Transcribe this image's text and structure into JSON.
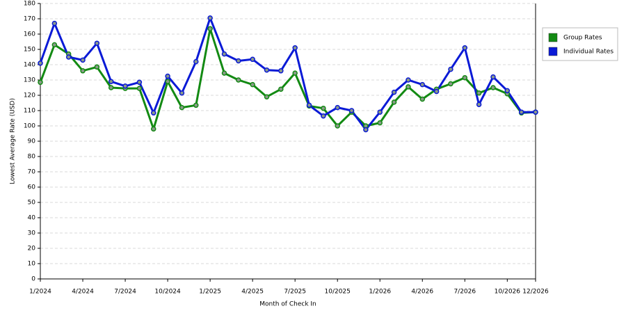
{
  "chart_data": {
    "type": "line",
    "x_label": "Month of Check In",
    "y_label": "Lowest Average Rate (USD)",
    "categories": [
      "1/2024",
      null,
      null,
      "4/2024",
      null,
      null,
      "7/2024",
      null,
      null,
      "10/2024",
      null,
      null,
      "1/2025",
      null,
      null,
      "4/2025",
      null,
      null,
      "7/2025",
      null,
      null,
      "10/2025",
      null,
      null,
      "1/2026",
      null,
      null,
      "4/2026",
      null,
      null,
      "7/2026",
      null,
      null,
      "10/2026",
      null,
      "12/2026"
    ],
    "series": [
      {
        "name": "Group Rates",
        "color": "#138a13",
        "values": [
          128.5,
          153,
          147,
          136,
          138.5,
          125,
          124.5,
          124.5,
          98,
          129,
          112,
          113.5,
          163.5,
          134.5,
          130,
          127,
          119,
          124,
          134.5,
          113,
          111.5,
          100,
          109,
          100,
          102,
          115.5,
          125.5,
          117.5,
          124,
          127.5,
          131.5,
          121.5,
          125,
          121,
          108.5,
          109
        ]
      },
      {
        "name": "Individual Rates",
        "color": "#0a1ad6",
        "values": [
          141,
          167,
          145,
          143,
          154,
          129,
          126,
          128.5,
          108.5,
          132.5,
          121.5,
          142,
          170.5,
          147,
          142.5,
          143.5,
          136.5,
          136,
          151,
          113.5,
          106.5,
          112,
          110,
          97.5,
          109,
          122,
          130,
          127,
          122.5,
          137,
          151,
          114,
          132,
          123,
          109,
          109
        ]
      }
    ],
    "ylim": [
      0,
      180
    ],
    "yticks": [
      0,
      10,
      20,
      30,
      40,
      50,
      60,
      70,
      80,
      90,
      100,
      110,
      120,
      130,
      140,
      150,
      160,
      170,
      180
    ],
    "grid": true,
    "legend": "right"
  }
}
